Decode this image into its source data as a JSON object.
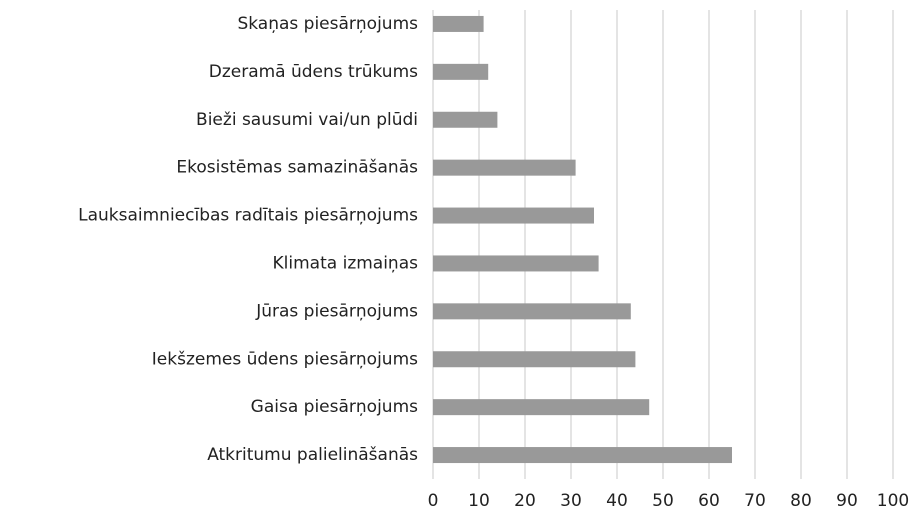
{
  "chart_data": {
    "type": "barh",
    "categories": [
      "Skaņas piesārņojums",
      "Dzeramā ūdens trūkums",
      "Bieži sausumi vai/un plūdi",
      "Ekosistēmas samazināšanās",
      "Lauksaimniecības radītais piesārņojums",
      "Klimata izmaiņas",
      "Jūras piesārņojums",
      "Iekšzemes ūdens piesārņojums",
      "Gaisa piesārņojums",
      "Atkritumu palielināšanās"
    ],
    "values": [
      11,
      12,
      14,
      31,
      35,
      36,
      43,
      44,
      47,
      65
    ],
    "color": "#999999",
    "xlim": [
      0,
      100
    ],
    "xticks": [
      0,
      10,
      20,
      30,
      40,
      50,
      60,
      70,
      80,
      90,
      100
    ],
    "grid": true
  }
}
